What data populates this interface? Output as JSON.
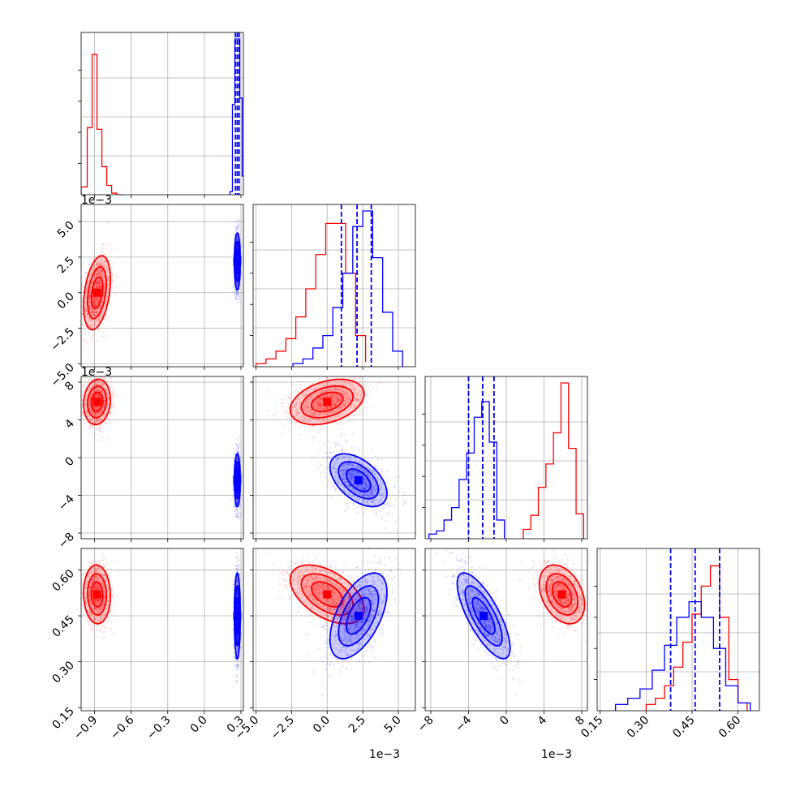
{
  "figure": {
    "type": "corner-plot",
    "colors": {
      "red": "#ff0000",
      "blue": "#0000ff",
      "grid": "#b0b0b0"
    }
  },
  "chart_data": {
    "type": "scatter",
    "params": [
      {
        "id": "p1",
        "range": [
          -1.01,
          0.32
        ],
        "ticks": [
          -0.9,
          -0.6,
          -0.3,
          0.0,
          0.3
        ],
        "tick_labels": [
          "−0.9",
          "−0.6",
          "−0.3",
          "0.0",
          "0.3"
        ],
        "offset_text": ""
      },
      {
        "id": "p2",
        "range": [
          -5.2,
          6.2
        ],
        "ticks": [
          -5.0,
          -2.5,
          0.0,
          2.5,
          5.0
        ],
        "tick_labels": [
          "−5.0",
          "−2.5",
          "0.0",
          "2.5",
          "5.0"
        ],
        "offset_text": "1e−3"
      },
      {
        "id": "p3",
        "range": [
          -8.6,
          8.6
        ],
        "ticks": [
          -8,
          -4,
          0,
          4,
          8
        ],
        "tick_labels": [
          "−8",
          "−4",
          "0",
          "4",
          "8"
        ],
        "offset_text": "1e−3"
      },
      {
        "id": "p4",
        "range": [
          0.14,
          0.67
        ],
        "ticks": [
          0.15,
          0.3,
          0.45,
          0.6
        ],
        "tick_labels": [
          "0.15",
          "0.30",
          "0.45",
          "0.60"
        ],
        "offset_text": ""
      }
    ],
    "series": [
      {
        "color": "#ff0000",
        "mean": [
          -0.88,
          0.0,
          5.9,
          0.52
        ],
        "sd": [
          0.055,
          1.3,
          1.2,
          0.048
        ],
        "corr": {
          "0-1": 0.35,
          "0-2": 0.1,
          "0-3": -0.05,
          "1-2": 0.35,
          "1-3": -0.5,
          "2-3": -0.35
        },
        "hist": [
          {
            "param": 0,
            "edges": [
              -1.01,
              -0.96,
              -0.92,
              -0.88,
              -0.84,
              -0.8,
              -0.76,
              -0.72,
              -0.68
            ],
            "counts": [
              0.05,
              0.43,
              0.9,
              0.42,
              0.18,
              0.06,
              0.01,
              0.0
            ]
          },
          {
            "param": 1,
            "edges": [
              -5.0,
              -4.3,
              -3.6,
              -2.9,
              -2.2,
              -1.5,
              -0.8,
              -0.1,
              0.6,
              1.3,
              2.0,
              2.7
            ],
            "counts": [
              0.02,
              0.05,
              0.1,
              0.18,
              0.32,
              0.5,
              0.72,
              0.92,
              0.92,
              0.6,
              0.2,
              0.03
            ]
          },
          {
            "param": 2,
            "edges": [
              1.8,
              2.6,
              3.4,
              4.2,
              5.0,
              5.8,
              6.6,
              7.4,
              8.2
            ],
            "counts": [
              0.06,
              0.15,
              0.33,
              0.48,
              0.68,
              1.0,
              0.58,
              0.16
            ]
          },
          {
            "param": 3,
            "edges": [
              0.3,
              0.33,
              0.36,
              0.39,
              0.42,
              0.45,
              0.48,
              0.51,
              0.54,
              0.57,
              0.6,
              0.63
            ],
            "counts": [
              0.04,
              0.08,
              0.16,
              0.28,
              0.44,
              0.62,
              0.8,
              0.93,
              0.6,
              0.2,
              0.05
            ]
          }
        ]
      },
      {
        "color": "#0000ff",
        "mean": [
          0.27,
          2.2,
          -2.4,
          0.45
        ],
        "sd": [
          0.012,
          1.0,
          1.4,
          0.07
        ],
        "corr": {
          "0-1": 0.0,
          "0-2": 0.0,
          "0-3": 0.0,
          "1-2": -0.5,
          "1-3": 0.55,
          "2-3": -0.75
        },
        "hist": [
          {
            "param": 0,
            "edges": [
              0.21,
              0.23,
              0.25,
              0.27,
              0.29,
              0.31,
              0.33
            ],
            "counts": [
              0.02,
              0.58,
              1.0,
              1.0,
              0.62,
              0.12
            ]
          },
          {
            "param": 1,
            "edges": [
              -2.4,
              -1.7,
              -1.0,
              -0.3,
              0.4,
              1.1,
              1.8,
              2.5,
              3.2,
              3.9,
              4.6,
              5.3
            ],
            "counts": [
              0.02,
              0.05,
              0.12,
              0.2,
              0.38,
              0.6,
              0.9,
              1.0,
              0.7,
              0.35,
              0.1
            ]
          },
          {
            "param": 2,
            "edges": [
              -8.2,
              -7.4,
              -6.6,
              -5.8,
              -5.0,
              -4.2,
              -3.4,
              -2.6,
              -1.8,
              -1.0,
              -0.2
            ],
            "counts": [
              0.03,
              0.05,
              0.12,
              0.2,
              0.38,
              0.55,
              0.78,
              0.88,
              0.62,
              0.12
            ]
          },
          {
            "param": 3,
            "edges": [
              0.2,
              0.24,
              0.28,
              0.32,
              0.36,
              0.4,
              0.44,
              0.48,
              0.52,
              0.56,
              0.6,
              0.64
            ],
            "counts": [
              0.04,
              0.08,
              0.14,
              0.26,
              0.42,
              0.6,
              0.7,
              0.6,
              0.4,
              0.16,
              0.05
            ]
          }
        ],
        "quantiles": [
          [
            0.255,
            0.27,
            0.285
          ],
          [
            1.0,
            2.1,
            3.1
          ],
          [
            -4.0,
            -2.5,
            -1.3
          ],
          [
            0.38,
            0.46,
            0.54
          ]
        ]
      }
    ]
  }
}
